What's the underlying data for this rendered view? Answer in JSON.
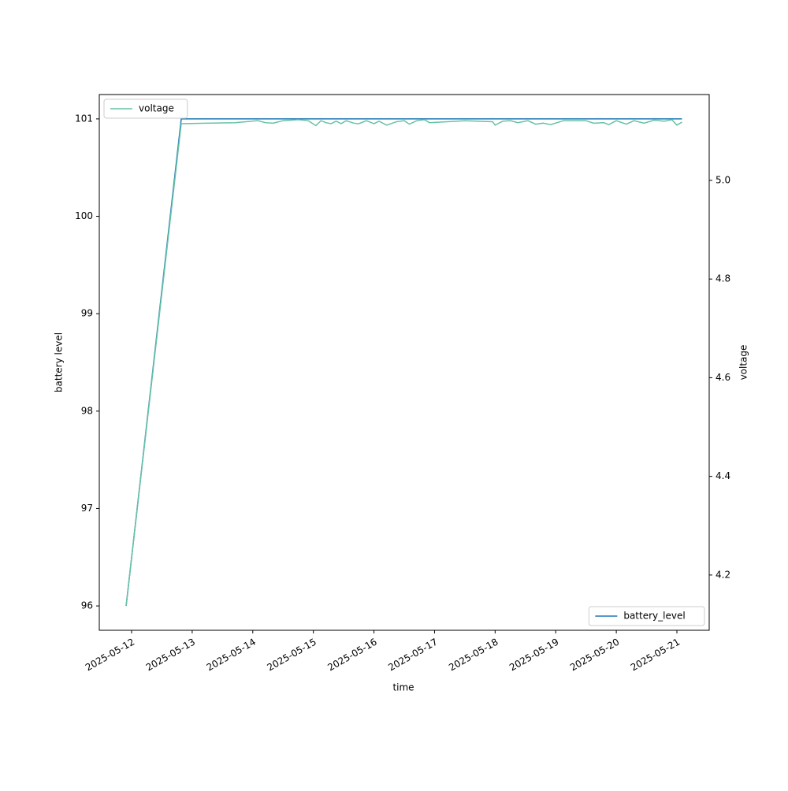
{
  "chart_data": {
    "type": "line",
    "xlabel": "time",
    "ylabel": "battery level",
    "y2label": "voltage",
    "xlim": [
      "2025-05-11T11:12",
      "2025-05-21T12:48"
    ],
    "xticks": [
      "2025-05-12",
      "2025-05-13",
      "2025-05-14",
      "2025-05-15",
      "2025-05-16",
      "2025-05-17",
      "2025-05-18",
      "2025-05-19",
      "2025-05-20",
      "2025-05-21"
    ],
    "ylim": [
      95.75,
      101.25
    ],
    "yticks": [
      96,
      97,
      98,
      99,
      100,
      101
    ],
    "y2lim": [
      4.088,
      5.174
    ],
    "y2ticks": [
      4.2,
      4.4,
      4.6,
      4.8,
      {
        "value": 5,
        "label": "5.0"
      }
    ],
    "series": [
      {
        "name": "battery_level",
        "color": "#1f77b4",
        "axis": "y",
        "legend": "lower right",
        "x": [
          "2025-05-11T21:50",
          "2025-05-12T19:40",
          "2025-05-21T02:00"
        ],
        "values": [
          96,
          101,
          101
        ]
      },
      {
        "name": "voltage",
        "color": "#66c2a5",
        "axis": "y2",
        "legend": "upper left",
        "x": [
          "2025-05-11T21:50",
          "2025-05-12T19:40",
          "2025-05-13T17:00",
          "2025-05-14T02:00",
          "2025-05-14T05:00",
          "2025-05-14T08:00",
          "2025-05-14T12:00",
          "2025-05-14T18:00",
          "2025-05-14T22:00",
          "2025-05-15T01:00",
          "2025-05-15T03:00",
          "2025-05-15T05:00",
          "2025-05-15T07:00",
          "2025-05-15T09:00",
          "2025-05-15T11:00",
          "2025-05-15T13:00",
          "2025-05-15T16:00",
          "2025-05-15T18:00",
          "2025-05-15T21:00",
          "2025-05-16T00:00",
          "2025-05-16T02:00",
          "2025-05-16T05:00",
          "2025-05-16T09:00",
          "2025-05-16T12:00",
          "2025-05-16T14:00",
          "2025-05-16T17:00",
          "2025-05-16T20:00",
          "2025-05-16T22:00",
          "2025-05-17T12:00",
          "2025-05-17T23:00",
          "2025-05-18T00:00",
          "2025-05-18T03:00",
          "2025-05-18T06:00",
          "2025-05-18T09:00",
          "2025-05-18T13:00",
          "2025-05-18T16:00",
          "2025-05-18T19:00",
          "2025-05-18T22:00",
          "2025-05-19T03:00",
          "2025-05-19T12:00",
          "2025-05-19T15:00",
          "2025-05-19T19:00",
          "2025-05-19T21:00",
          "2025-05-20T00:00",
          "2025-05-20T04:00",
          "2025-05-20T07:00",
          "2025-05-20T11:00",
          "2025-05-20T15:00",
          "2025-05-20T19:00",
          "2025-05-20T22:00",
          "2025-05-21T00:00",
          "2025-05-21T02:00"
        ],
        "values": [
          4.138,
          5.115,
          5.117,
          5.121,
          5.117,
          5.116,
          5.121,
          5.123,
          5.121,
          5.111,
          5.121,
          5.117,
          5.115,
          5.12,
          5.115,
          5.121,
          5.116,
          5.115,
          5.121,
          5.115,
          5.12,
          5.112,
          5.119,
          5.121,
          5.114,
          5.121,
          5.123,
          5.117,
          5.121,
          5.119,
          5.112,
          5.12,
          5.121,
          5.117,
          5.121,
          5.114,
          5.116,
          5.113,
          5.121,
          5.121,
          5.116,
          5.117,
          5.113,
          5.121,
          5.114,
          5.121,
          5.116,
          5.122,
          5.12,
          5.123,
          5.112,
          5.118
        ]
      }
    ]
  }
}
